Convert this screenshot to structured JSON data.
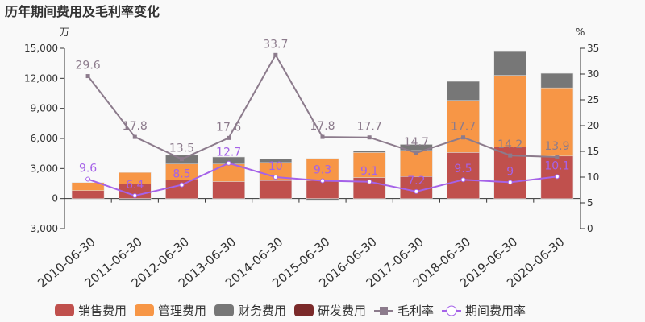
{
  "chart_data": {
    "type": "bar",
    "title": "历年期间费用及毛利率变化",
    "left_unit": "万",
    "right_unit": "%",
    "categories": [
      "2010-06-30",
      "2011-06-30",
      "2012-06-30",
      "2013-06-30",
      "2014-06-30",
      "2015-06-30",
      "2016-06-30",
      "2017-06-30",
      "2018-06-30",
      "2019-06-30",
      "2020-06-30"
    ],
    "ylim": [
      -3000,
      15000
    ],
    "yticks": [
      -3000,
      0,
      3000,
      6000,
      9000,
      12000,
      15000
    ],
    "y2lim": [
      0,
      35
    ],
    "y2ticks": [
      0,
      5,
      10,
      15,
      20,
      25,
      30,
      35
    ],
    "bar_series": [
      {
        "name": "销售费用",
        "color": "#c0504d",
        "values": [
          800,
          1450,
          1850,
          1700,
          1800,
          1800,
          2100,
          2200,
          4600,
          5150,
          4250
        ]
      },
      {
        "name": "管理费用",
        "color": "#f79646",
        "values": [
          800,
          1150,
          1600,
          1750,
          1800,
          2200,
          2500,
          2600,
          5200,
          7150,
          6800
        ]
      },
      {
        "name": "财务费用",
        "color": "#777777",
        "values": [
          0,
          -200,
          880,
          700,
          350,
          -200,
          150,
          600,
          1900,
          2450,
          1450
        ]
      },
      {
        "name": "研发费用",
        "color": "#7b2a2a",
        "values": [
          0,
          0,
          0,
          0,
          0,
          0,
          0,
          0,
          0,
          0,
          0
        ]
      }
    ],
    "line_series": [
      {
        "name": "毛利率",
        "color": "#8c7b8c",
        "values": [
          29.6,
          17.8,
          13.5,
          17.6,
          33.7,
          17.8,
          17.7,
          14.7,
          17.7,
          14.2,
          13.9
        ]
      },
      {
        "name": "期间费用率",
        "color": "#a562e8",
        "values": [
          9.6,
          6.4,
          8.5,
          12.7,
          10,
          9.3,
          9.1,
          7.2,
          9.5,
          9,
          10.1
        ]
      }
    ],
    "legend_position": "bottom"
  }
}
